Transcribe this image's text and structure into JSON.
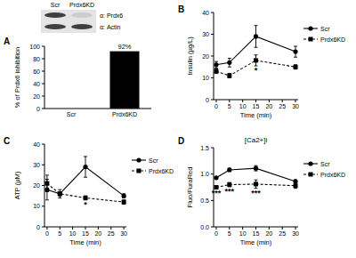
{
  "chart_data": [
    {
      "panel": "A",
      "type": "bar",
      "blot": {
        "lanes": [
          "Scr",
          "Prdx6KD"
        ],
        "rows": [
          "α: Prdx6",
          "α: Actin"
        ]
      },
      "y_label": "% of Prdx6 inhibition",
      "categories": [
        "Scr",
        "Prdx6KD"
      ],
      "values": [
        0,
        92
      ],
      "value_labels": [
        null,
        "92%"
      ],
      "data_labels": true,
      "color": "#000000",
      "ylim": [
        0,
        100
      ],
      "yticks": [
        0,
        20,
        40,
        60,
        80,
        100
      ]
    },
    {
      "panel": "B",
      "type": "line",
      "y_label": "Insulin (µg/L)",
      "x_label": "Time (min)",
      "x": [
        0,
        5,
        15,
        30
      ],
      "series": [
        {
          "name": "Scr",
          "color": "#000000",
          "marker": "circle",
          "line_style": "solid",
          "values": [
            16,
            17,
            29,
            22
          ],
          "errors": [
            1.5,
            2,
            5,
            2.5
          ]
        },
        {
          "name": "Prdx6KD",
          "color": "#000000",
          "marker": "square",
          "line_style": "dashed",
          "values": [
            13,
            11,
            18,
            15
          ],
          "errors": [
            1,
            1,
            2.5,
            1
          ]
        }
      ],
      "xlim": [
        -1,
        31
      ],
      "xticks": [
        0,
        5,
        10,
        15,
        20,
        25,
        30
      ],
      "ylim": [
        0,
        40
      ],
      "yticks": [
        0,
        10,
        20,
        30,
        40
      ],
      "legend": "right",
      "annotations": [
        {
          "text": "*",
          "x": 15
        }
      ]
    },
    {
      "panel": "C",
      "type": "line",
      "y_label": "ATP (µM)",
      "x_label": "Time (min)",
      "x": [
        0,
        5,
        15,
        30
      ],
      "series": [
        {
          "name": "Scr",
          "color": "#000000",
          "marker": "circle",
          "line_style": "solid",
          "values": [
            18,
            16,
            29,
            15
          ],
          "errors": [
            5,
            2,
            5,
            1
          ]
        },
        {
          "name": "Prdx6KD",
          "color": "#000000",
          "marker": "square",
          "line_style": "dashed",
          "values": [
            21,
            16,
            14,
            12
          ],
          "errors": [
            4,
            1,
            1,
            1
          ]
        }
      ],
      "xlim": [
        -1,
        31
      ],
      "xticks": [
        0,
        5,
        10,
        15,
        20,
        25,
        30
      ],
      "ylim": [
        0,
        40
      ],
      "yticks": [
        0,
        10,
        20,
        30,
        40
      ],
      "legend": "right",
      "annotations": [
        {
          "text": "*",
          "x": 15
        }
      ]
    },
    {
      "panel": "D",
      "type": "line",
      "title": "[Ca2+]i",
      "y_label": "Fluo/FuraRed",
      "x_label": "Time (min)",
      "x": [
        0,
        5,
        15,
        30
      ],
      "series": [
        {
          "name": "Scr",
          "color": "#000000",
          "marker": "circle",
          "line_style": "solid",
          "values": [
            0.93,
            1.08,
            1.11,
            0.86
          ],
          "errors": [
            0.02,
            0.03,
            0.05,
            0.03
          ]
        },
        {
          "name": "Prdx6KD",
          "color": "#000000",
          "marker": "square",
          "line_style": "dashed",
          "values": [
            0.75,
            0.8,
            0.81,
            0.78
          ],
          "errors": [
            0.03,
            0.04,
            0.08,
            0.05
          ]
        }
      ],
      "xlim": [
        -1,
        31
      ],
      "xticks": [
        0,
        5,
        10,
        15,
        20,
        25,
        30
      ],
      "ylim": [
        0,
        1.5
      ],
      "yticks": [
        {
          "value": 0,
          "label": "0.0"
        },
        0.5,
        {
          "value": 1,
          "label": "1.0"
        },
        1.5
      ],
      "legend": "right",
      "annotations": [
        {
          "text": "***",
          "x": 0
        },
        {
          "text": "***",
          "x": 5
        },
        {
          "text": "***",
          "x": 15
        }
      ]
    }
  ]
}
